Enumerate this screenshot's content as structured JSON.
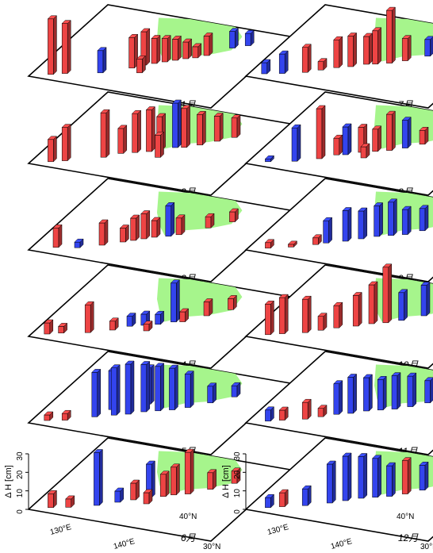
{
  "chart_data": {
    "type": "bar3d",
    "title": "",
    "zlabel": "Δ H",
    "zunit": "[cm]",
    "z_ticks": [
      "0",
      "10",
      "20",
      "30"
    ],
    "zlim": [
      0,
      30
    ],
    "x_tick_labels": [
      "130°E",
      "140°E"
    ],
    "y_tick_labels": [
      "30°N",
      "40°N"
    ],
    "positive_color": "#ee4444",
    "negative_color": "#3344ee",
    "land_color": "#a6f58c",
    "panels": [
      {
        "month": "1月",
        "bars": [
          [
            0.08,
            0.06,
            1.0,
            "+"
          ],
          [
            0.14,
            0.1,
            0.9,
            "+"
          ],
          [
            0.42,
            0.3,
            0.55,
            "+"
          ],
          [
            0.46,
            0.36,
            0.6,
            "+"
          ],
          [
            0.5,
            0.4,
            0.45,
            "+"
          ],
          [
            0.54,
            0.44,
            0.42,
            "+"
          ],
          [
            0.58,
            0.48,
            0.38,
            "+"
          ],
          [
            0.62,
            0.52,
            0.3,
            "+"
          ],
          [
            0.66,
            0.55,
            0.2,
            "+"
          ],
          [
            0.78,
            0.74,
            0.3,
            "-"
          ],
          [
            0.84,
            0.8,
            0.22,
            "-"
          ],
          [
            0.3,
            0.18,
            0.4,
            "-"
          ],
          [
            0.7,
            0.6,
            0.35,
            "+"
          ],
          [
            0.48,
            0.26,
            0.25,
            "+"
          ]
        ]
      },
      {
        "month": "2月",
        "bars": [
          [
            0.08,
            0.06,
            0.4,
            "+"
          ],
          [
            0.14,
            0.1,
            0.6,
            "+"
          ],
          [
            0.3,
            0.22,
            0.8,
            "+"
          ],
          [
            0.42,
            0.34,
            0.7,
            "+"
          ],
          [
            0.48,
            0.38,
            0.75,
            "+"
          ],
          [
            0.52,
            0.42,
            0.6,
            "+"
          ],
          [
            0.58,
            0.48,
            0.8,
            "-"
          ],
          [
            0.62,
            0.5,
            0.7,
            "+"
          ],
          [
            0.68,
            0.56,
            0.55,
            "+"
          ],
          [
            0.74,
            0.64,
            0.45,
            "+"
          ],
          [
            0.8,
            0.72,
            0.35,
            "+"
          ],
          [
            0.36,
            0.3,
            0.45,
            "+"
          ],
          [
            0.55,
            0.33,
            0.4,
            "+"
          ]
        ]
      },
      {
        "month": "3月",
        "bars": [
          [
            0.1,
            0.08,
            0.35,
            "+"
          ],
          [
            0.3,
            0.2,
            0.4,
            "+"
          ],
          [
            0.42,
            0.32,
            0.4,
            "+"
          ],
          [
            0.46,
            0.36,
            0.45,
            "+"
          ],
          [
            0.5,
            0.4,
            0.3,
            "+"
          ],
          [
            0.56,
            0.44,
            0.55,
            "-"
          ],
          [
            0.6,
            0.48,
            0.3,
            "+"
          ],
          [
            0.7,
            0.62,
            0.2,
            "+"
          ],
          [
            0.78,
            0.74,
            0.18,
            "+"
          ],
          [
            0.2,
            0.12,
            0.1,
            "-"
          ],
          [
            0.38,
            0.28,
            0.25,
            "+"
          ]
        ]
      },
      {
        "month": "4月",
        "bars": [
          [
            0.06,
            0.06,
            0.2,
            "+"
          ],
          [
            0.12,
            0.1,
            0.12,
            "+"
          ],
          [
            0.24,
            0.16,
            0.5,
            "+"
          ],
          [
            0.4,
            0.32,
            0.18,
            "-"
          ],
          [
            0.46,
            0.36,
            0.2,
            "-"
          ],
          [
            0.52,
            0.4,
            0.18,
            "-"
          ],
          [
            0.58,
            0.46,
            0.7,
            "-"
          ],
          [
            0.62,
            0.48,
            0.18,
            "+"
          ],
          [
            0.7,
            0.6,
            0.25,
            "+"
          ],
          [
            0.78,
            0.72,
            0.2,
            "+"
          ],
          [
            0.34,
            0.24,
            0.16,
            "+"
          ],
          [
            0.5,
            0.3,
            0.12,
            "+"
          ]
        ]
      },
      {
        "month": "5月",
        "bars": [
          [
            0.06,
            0.06,
            0.1,
            "+"
          ],
          [
            0.14,
            0.1,
            0.12,
            "+"
          ],
          [
            0.26,
            0.2,
            0.8,
            "-"
          ],
          [
            0.34,
            0.26,
            0.85,
            "-"
          ],
          [
            0.4,
            0.3,
            0.9,
            "-"
          ],
          [
            0.46,
            0.36,
            0.85,
            "-"
          ],
          [
            0.52,
            0.4,
            0.8,
            "-"
          ],
          [
            0.58,
            0.44,
            0.75,
            "-"
          ],
          [
            0.64,
            0.5,
            0.6,
            "-"
          ],
          [
            0.72,
            0.6,
            0.3,
            "-"
          ],
          [
            0.8,
            0.72,
            0.2,
            "-"
          ],
          [
            0.3,
            0.32,
            0.7,
            "-"
          ],
          [
            0.44,
            0.46,
            0.65,
            "-"
          ]
        ]
      },
      {
        "month": "6月",
        "bars": [
          [
            0.08,
            0.06,
            0.25,
            "+"
          ],
          [
            0.16,
            0.1,
            0.15,
            "+"
          ],
          [
            0.28,
            0.18,
            0.95,
            "-"
          ],
          [
            0.42,
            0.32,
            0.3,
            "+"
          ],
          [
            0.48,
            0.38,
            0.6,
            "-"
          ],
          [
            0.54,
            0.42,
            0.4,
            "+"
          ],
          [
            0.58,
            0.46,
            0.5,
            "+"
          ],
          [
            0.64,
            0.5,
            0.75,
            "+"
          ],
          [
            0.72,
            0.6,
            0.3,
            "+"
          ],
          [
            0.8,
            0.72,
            0.22,
            "+"
          ],
          [
            0.36,
            0.26,
            0.2,
            "-"
          ],
          [
            0.5,
            0.3,
            0.2,
            "+"
          ]
        ]
      },
      {
        "month": "7月",
        "bars": [
          [
            0.06,
            0.06,
            0.2,
            "-"
          ],
          [
            0.14,
            0.1,
            0.35,
            "-"
          ],
          [
            0.24,
            0.16,
            0.45,
            "+"
          ],
          [
            0.36,
            0.28,
            0.5,
            "+"
          ],
          [
            0.42,
            0.32,
            0.55,
            "+"
          ],
          [
            0.48,
            0.38,
            0.5,
            "+"
          ],
          [
            0.52,
            0.4,
            0.6,
            "+"
          ],
          [
            0.58,
            0.44,
            0.95,
            "+"
          ],
          [
            0.64,
            0.5,
            0.4,
            "+"
          ],
          [
            0.72,
            0.6,
            0.3,
            "-"
          ],
          [
            0.8,
            0.7,
            0.45,
            "+"
          ],
          [
            0.86,
            0.78,
            0.5,
            "+"
          ],
          [
            0.3,
            0.22,
            0.15,
            "+"
          ]
        ]
      },
      {
        "month": "8月",
        "bars": [
          [
            0.08,
            0.06,
            0.05,
            "-"
          ],
          [
            0.2,
            0.12,
            0.6,
            "-"
          ],
          [
            0.3,
            0.2,
            0.9,
            "+"
          ],
          [
            0.4,
            0.3,
            0.5,
            "-"
          ],
          [
            0.46,
            0.36,
            0.45,
            "+"
          ],
          [
            0.52,
            0.4,
            0.4,
            "+"
          ],
          [
            0.58,
            0.44,
            0.65,
            "+"
          ],
          [
            0.64,
            0.5,
            0.5,
            "-"
          ],
          [
            0.7,
            0.58,
            0.25,
            "+"
          ],
          [
            0.78,
            0.7,
            0.2,
            "-"
          ],
          [
            0.36,
            0.28,
            0.3,
            "+"
          ],
          [
            0.5,
            0.3,
            0.2,
            "+"
          ]
        ]
      },
      {
        "month": "9月",
        "bars": [
          [
            0.08,
            0.06,
            0.1,
            "+"
          ],
          [
            0.18,
            0.12,
            0.05,
            "+"
          ],
          [
            0.32,
            0.24,
            0.4,
            "-"
          ],
          [
            0.4,
            0.3,
            0.55,
            "-"
          ],
          [
            0.46,
            0.36,
            0.5,
            "-"
          ],
          [
            0.52,
            0.42,
            0.55,
            "-"
          ],
          [
            0.58,
            0.46,
            0.6,
            "-"
          ],
          [
            0.64,
            0.5,
            0.45,
            "-"
          ],
          [
            0.7,
            0.58,
            0.4,
            "-"
          ],
          [
            0.78,
            0.7,
            0.25,
            "-"
          ],
          [
            0.86,
            0.78,
            0.18,
            "+"
          ],
          [
            0.28,
            0.2,
            0.12,
            "+"
          ]
        ]
      },
      {
        "month": "10月",
        "bars": [
          [
            0.08,
            0.06,
            0.55,
            "+"
          ],
          [
            0.14,
            0.1,
            0.65,
            "+"
          ],
          [
            0.24,
            0.16,
            0.6,
            "+"
          ],
          [
            0.36,
            0.28,
            0.4,
            "+"
          ],
          [
            0.44,
            0.34,
            0.55,
            "+"
          ],
          [
            0.5,
            0.4,
            0.7,
            "+"
          ],
          [
            0.56,
            0.44,
            1.0,
            "+"
          ],
          [
            0.62,
            0.5,
            0.5,
            "-"
          ],
          [
            0.7,
            0.6,
            0.55,
            "-"
          ],
          [
            0.76,
            0.68,
            0.6,
            "-"
          ],
          [
            0.84,
            0.76,
            0.55,
            "-"
          ],
          [
            0.3,
            0.22,
            0.25,
            "+"
          ]
        ]
      },
      {
        "month": "11月",
        "bars": [
          [
            0.08,
            0.06,
            0.2,
            "-"
          ],
          [
            0.14,
            0.1,
            0.18,
            "+"
          ],
          [
            0.24,
            0.16,
            0.3,
            "+"
          ],
          [
            0.36,
            0.28,
            0.55,
            "-"
          ],
          [
            0.42,
            0.32,
            0.65,
            "-"
          ],
          [
            0.48,
            0.38,
            0.6,
            "-"
          ],
          [
            0.54,
            0.42,
            0.55,
            "-"
          ],
          [
            0.6,
            0.46,
            0.6,
            "-"
          ],
          [
            0.66,
            0.52,
            0.55,
            "-"
          ],
          [
            0.72,
            0.6,
            0.4,
            "-"
          ],
          [
            0.8,
            0.72,
            0.25,
            "-"
          ],
          [
            0.3,
            0.22,
            0.15,
            "+"
          ]
        ]
      },
      {
        "month": "12月",
        "bars": [
          [
            0.08,
            0.06,
            0.18,
            "-"
          ],
          [
            0.14,
            0.1,
            0.25,
            "+"
          ],
          [
            0.24,
            0.16,
            0.3,
            "-"
          ],
          [
            0.34,
            0.24,
            0.7,
            "-"
          ],
          [
            0.4,
            0.3,
            0.8,
            "-"
          ],
          [
            0.46,
            0.36,
            0.75,
            "-"
          ],
          [
            0.52,
            0.4,
            0.7,
            "-"
          ],
          [
            0.58,
            0.44,
            0.55,
            "-"
          ],
          [
            0.64,
            0.5,
            0.6,
            "+"
          ],
          [
            0.7,
            0.58,
            0.45,
            "-"
          ],
          [
            0.78,
            0.7,
            0.3,
            "-"
          ],
          [
            0.86,
            0.78,
            0.25,
            "+"
          ]
        ]
      }
    ]
  }
}
